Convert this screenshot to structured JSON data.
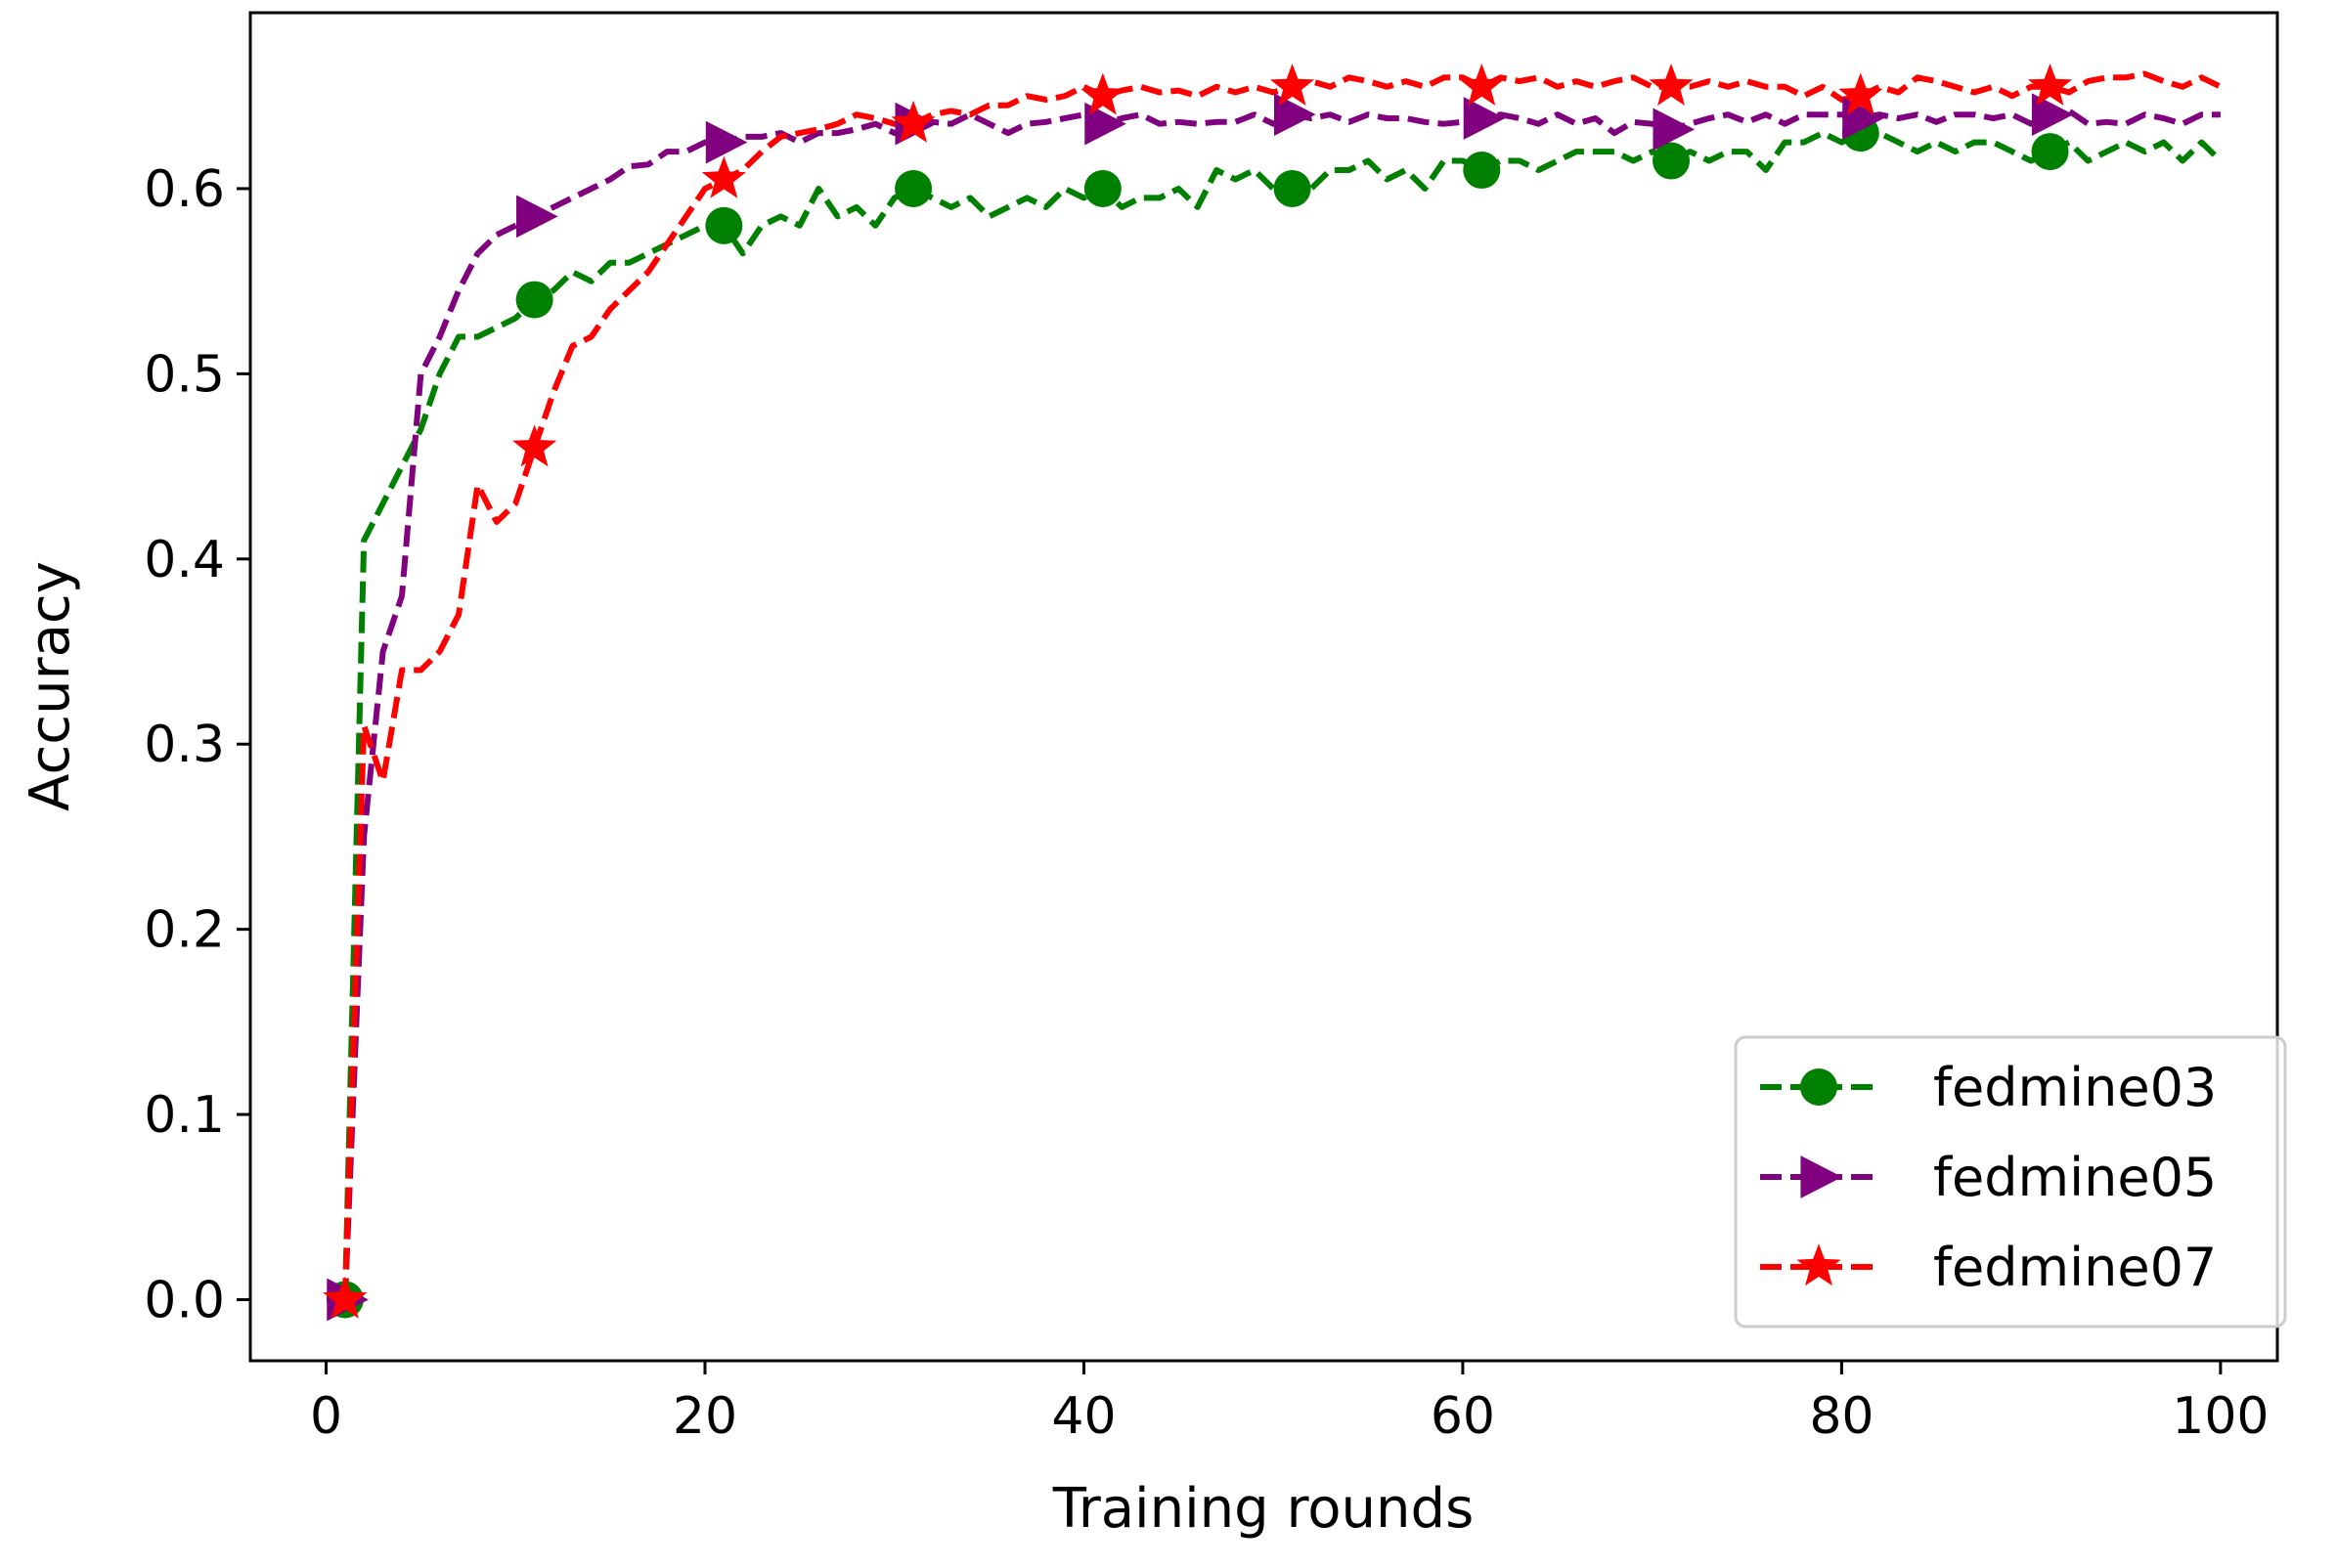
{
  "chart_data": {
    "type": "line",
    "title": "",
    "xlabel": "Training rounds",
    "ylabel": "Accuracy",
    "xlim": [
      -4,
      103
    ],
    "ylim": [
      -0.033,
      0.695
    ],
    "xticks": [
      0,
      20,
      40,
      60,
      80,
      100
    ],
    "xtick_labels": [
      "0",
      "20",
      "40",
      "60",
      "80",
      "100"
    ],
    "yticks": [
      0.0,
      0.1,
      0.2,
      0.3,
      0.4,
      0.5,
      0.6
    ],
    "ytick_labels": [
      "0.0",
      "0.1",
      "0.2",
      "0.3",
      "0.4",
      "0.5",
      "0.6"
    ],
    "grid": false,
    "legend_position": "bottom-right",
    "series": [
      {
        "name": "fedmine03",
        "color": "#008000",
        "marker": "circle",
        "x": [
          1,
          2,
          3,
          4,
          5,
          6,
          7,
          8,
          9,
          10,
          11,
          12,
          13,
          14,
          15,
          16,
          17,
          18,
          19,
          20,
          21,
          22,
          23,
          24,
          25,
          26,
          27,
          28,
          29,
          30,
          31,
          32,
          33,
          34,
          35,
          36,
          37,
          38,
          39,
          40,
          41,
          42,
          43,
          44,
          45,
          46,
          47,
          48,
          49,
          50,
          51,
          52,
          53,
          54,
          55,
          56,
          57,
          58,
          59,
          60,
          61,
          62,
          63,
          64,
          65,
          66,
          67,
          68,
          69,
          70,
          71,
          72,
          73,
          74,
          75,
          76,
          77,
          78,
          79,
          80,
          81,
          82,
          83,
          84,
          85,
          86,
          87,
          88,
          89,
          90,
          91,
          92,
          93,
          94,
          95,
          96,
          97,
          98,
          99,
          100
        ],
        "values": [
          0.0,
          0.41,
          0.43,
          0.45,
          0.47,
          0.5,
          0.52,
          0.52,
          0.525,
          0.53,
          0.54,
          0.545,
          0.555,
          0.55,
          0.56,
          0.56,
          0.565,
          0.57,
          0.575,
          0.58,
          0.58,
          0.565,
          0.58,
          0.585,
          0.58,
          0.6,
          0.585,
          0.59,
          0.58,
          0.595,
          0.6,
          0.595,
          0.59,
          0.595,
          0.585,
          0.59,
          0.595,
          0.59,
          0.6,
          0.595,
          0.6,
          0.59,
          0.595,
          0.595,
          0.6,
          0.59,
          0.61,
          0.605,
          0.61,
          0.6,
          0.6,
          0.6,
          0.61,
          0.61,
          0.615,
          0.605,
          0.61,
          0.6,
          0.615,
          0.615,
          0.61,
          0.615,
          0.615,
          0.61,
          0.615,
          0.62,
          0.62,
          0.62,
          0.615,
          0.62,
          0.615,
          0.62,
          0.615,
          0.62,
          0.62,
          0.61,
          0.625,
          0.625,
          0.63,
          0.625,
          0.63,
          0.63,
          0.625,
          0.62,
          0.625,
          0.62,
          0.625,
          0.625,
          0.62,
          0.615,
          0.62,
          0.625,
          0.615,
          0.62,
          0.625,
          0.62,
          0.625,
          0.615,
          0.625,
          0.615
        ],
        "marker_every": [
          1,
          11,
          21,
          31,
          41,
          51,
          61,
          71,
          81,
          91
        ]
      },
      {
        "name": "fedmine05",
        "color": "#800080",
        "marker": "triangle-right",
        "x": [
          1,
          2,
          3,
          4,
          5,
          6,
          7,
          8,
          9,
          10,
          11,
          12,
          13,
          14,
          15,
          16,
          17,
          18,
          19,
          20,
          21,
          22,
          23,
          24,
          25,
          26,
          27,
          28,
          29,
          30,
          31,
          32,
          33,
          34,
          35,
          36,
          37,
          38,
          39,
          40,
          41,
          42,
          43,
          44,
          45,
          46,
          47,
          48,
          49,
          50,
          51,
          52,
          53,
          54,
          55,
          56,
          57,
          58,
          59,
          60,
          61,
          62,
          63,
          64,
          65,
          66,
          67,
          68,
          69,
          70,
          71,
          72,
          73,
          74,
          75,
          76,
          77,
          78,
          79,
          80,
          81,
          82,
          83,
          84,
          85,
          86,
          87,
          88,
          89,
          90,
          91,
          92,
          93,
          94,
          95,
          96,
          97,
          98,
          99,
          100
        ],
        "values": [
          0.0,
          0.25,
          0.35,
          0.38,
          0.5,
          0.52,
          0.545,
          0.565,
          0.575,
          0.58,
          0.585,
          0.59,
          0.595,
          0.6,
          0.605,
          0.612,
          0.613,
          0.62,
          0.62,
          0.625,
          0.625,
          0.628,
          0.628,
          0.63,
          0.625,
          0.63,
          0.63,
          0.632,
          0.635,
          0.63,
          0.635,
          0.636,
          0.635,
          0.64,
          0.635,
          0.63,
          0.635,
          0.636,
          0.638,
          0.64,
          0.635,
          0.638,
          0.64,
          0.635,
          0.636,
          0.635,
          0.636,
          0.636,
          0.64,
          0.635,
          0.64,
          0.638,
          0.64,
          0.636,
          0.64,
          0.638,
          0.638,
          0.636,
          0.635,
          0.636,
          0.638,
          0.64,
          0.638,
          0.635,
          0.64,
          0.635,
          0.638,
          0.63,
          0.636,
          0.635,
          0.632,
          0.635,
          0.638,
          0.64,
          0.636,
          0.64,
          0.635,
          0.64,
          0.64,
          0.64,
          0.638,
          0.64,
          0.638,
          0.64,
          0.636,
          0.64,
          0.64,
          0.638,
          0.64,
          0.635,
          0.64,
          0.642,
          0.635,
          0.636,
          0.635,
          0.64,
          0.638,
          0.635,
          0.64,
          0.64
        ],
        "marker_every": [
          1,
          11,
          21,
          31,
          41,
          51,
          61,
          71,
          81,
          91
        ]
      },
      {
        "name": "fedmine07",
        "color": "#ff0000",
        "marker": "star",
        "x": [
          1,
          2,
          3,
          4,
          5,
          6,
          7,
          8,
          9,
          10,
          11,
          12,
          13,
          14,
          15,
          16,
          17,
          18,
          19,
          20,
          21,
          22,
          23,
          24,
          25,
          26,
          27,
          28,
          29,
          30,
          31,
          32,
          33,
          34,
          35,
          36,
          37,
          38,
          39,
          40,
          41,
          42,
          43,
          44,
          45,
          46,
          47,
          48,
          49,
          50,
          51,
          52,
          53,
          54,
          55,
          56,
          57,
          58,
          59,
          60,
          61,
          62,
          63,
          64,
          65,
          66,
          67,
          68,
          69,
          70,
          71,
          72,
          73,
          74,
          75,
          76,
          77,
          78,
          79,
          80,
          81,
          82,
          83,
          84,
          85,
          86,
          87,
          88,
          89,
          90,
          91,
          92,
          93,
          94,
          95,
          96,
          97,
          98,
          99,
          100
        ],
        "values": [
          0.0,
          0.31,
          0.28,
          0.34,
          0.34,
          0.35,
          0.37,
          0.44,
          0.42,
          0.43,
          0.46,
          0.49,
          0.515,
          0.52,
          0.535,
          0.545,
          0.555,
          0.57,
          0.585,
          0.6,
          0.605,
          0.61,
          0.62,
          0.628,
          0.63,
          0.632,
          0.635,
          0.64,
          0.638,
          0.635,
          0.635,
          0.64,
          0.642,
          0.64,
          0.645,
          0.645,
          0.65,
          0.648,
          0.65,
          0.655,
          0.65,
          0.653,
          0.655,
          0.652,
          0.653,
          0.65,
          0.655,
          0.652,
          0.655,
          0.652,
          0.655,
          0.658,
          0.655,
          0.66,
          0.658,
          0.655,
          0.658,
          0.655,
          0.66,
          0.66,
          0.655,
          0.66,
          0.658,
          0.66,
          0.655,
          0.658,
          0.655,
          0.658,
          0.66,
          0.655,
          0.655,
          0.655,
          0.658,
          0.655,
          0.658,
          0.655,
          0.655,
          0.65,
          0.655,
          0.648,
          0.65,
          0.655,
          0.652,
          0.66,
          0.658,
          0.655,
          0.652,
          0.655,
          0.65,
          0.655,
          0.655,
          0.652,
          0.658,
          0.66,
          0.66,
          0.662,
          0.658,
          0.655,
          0.66,
          0.655
        ],
        "marker_every": [
          1,
          11,
          21,
          31,
          41,
          51,
          61,
          71,
          81,
          91
        ]
      }
    ]
  }
}
